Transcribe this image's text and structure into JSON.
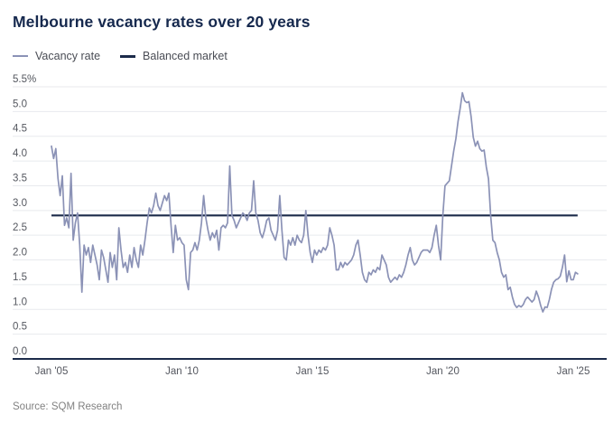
{
  "header": {
    "title": "Melbourne vacancy rates over 20 years"
  },
  "legend": [
    {
      "label": "Vacancy rate",
      "color": "#8b92b6"
    },
    {
      "label": "Balanced market",
      "color": "#1c2b4a"
    }
  ],
  "source": "Source: SQM Research",
  "colors": {
    "title": "#16294e",
    "vacancy_line": "#8b92b6",
    "balanced_line": "#1c2b4a",
    "gridline": "#e8eaee",
    "baseline": "#1c2b4a",
    "tick_text": "#54575f",
    "source_text": "#828282",
    "background": "#ffffff"
  },
  "chart_data": {
    "type": "line",
    "title": "Melbourne vacancy rates over 20 years",
    "unit": "%",
    "x_start": "Jan 2005",
    "x_end": "Mar 2025",
    "x_interval": "monthly",
    "ylim": [
      0,
      5.5
    ],
    "grid": "horizontal",
    "legend_position": "top-left",
    "y_ticks": [
      {
        "label": "5.5%",
        "value": 5.5
      },
      {
        "label": "5.0",
        "value": 5.0
      },
      {
        "label": "4.5",
        "value": 4.5
      },
      {
        "label": "4.0",
        "value": 4.0
      },
      {
        "label": "3.5",
        "value": 3.5
      },
      {
        "label": "3.0",
        "value": 3.0
      },
      {
        "label": "2.5",
        "value": 2.5
      },
      {
        "label": "2.0",
        "value": 2.0
      },
      {
        "label": "1.5",
        "value": 1.5
      },
      {
        "label": "1.0",
        "value": 1.0
      },
      {
        "label": "0.5",
        "value": 0.5
      },
      {
        "label": "0.0",
        "value": 0.0
      }
    ],
    "x_ticks": [
      {
        "label": "Jan '05",
        "month_index": 0
      },
      {
        "label": "Jan '10",
        "month_index": 60
      },
      {
        "label": "Jan '15",
        "month_index": 120
      },
      {
        "label": "Jan '20",
        "month_index": 180
      },
      {
        "label": "Jan '25",
        "month_index": 240
      }
    ],
    "series": [
      {
        "name": "Vacancy rate",
        "color": "#8b92b6",
        "values": [
          4.3,
          4.05,
          4.25,
          3.65,
          3.3,
          3.7,
          2.7,
          2.85,
          2.65,
          3.75,
          2.4,
          2.75,
          2.95,
          2.3,
          1.35,
          2.3,
          2.1,
          2.25,
          1.95,
          2.3,
          2.1,
          1.9,
          1.6,
          2.2,
          2.05,
          1.8,
          1.55,
          2.15,
          1.85,
          2.1,
          1.6,
          2.65,
          2.2,
          1.85,
          1.95,
          1.75,
          2.1,
          1.85,
          2.25,
          2.0,
          1.85,
          2.3,
          2.1,
          2.4,
          2.75,
          3.05,
          2.95,
          3.1,
          3.35,
          3.1,
          3.0,
          3.15,
          3.3,
          3.2,
          3.35,
          2.7,
          2.15,
          2.7,
          2.4,
          2.45,
          2.35,
          2.3,
          1.6,
          1.4,
          2.15,
          2.2,
          2.35,
          2.2,
          2.4,
          2.75,
          3.3,
          2.85,
          2.6,
          2.4,
          2.55,
          2.45,
          2.6,
          2.2,
          2.65,
          2.7,
          2.65,
          2.75,
          3.9,
          2.9,
          2.8,
          2.65,
          2.75,
          2.85,
          2.95,
          2.9,
          2.8,
          2.95,
          3.0,
          3.6,
          2.95,
          2.8,
          2.55,
          2.45,
          2.6,
          2.8,
          2.85,
          2.6,
          2.5,
          2.4,
          2.6,
          3.3,
          2.6,
          2.05,
          2.0,
          2.4,
          2.3,
          2.45,
          2.3,
          2.5,
          2.4,
          2.35,
          2.5,
          3.0,
          2.5,
          2.15,
          1.95,
          2.2,
          2.1,
          2.2,
          2.15,
          2.25,
          2.2,
          2.3,
          2.65,
          2.5,
          2.3,
          1.8,
          1.8,
          1.95,
          1.85,
          1.95,
          1.9,
          1.95,
          2.0,
          2.1,
          2.3,
          2.4,
          2.1,
          1.75,
          1.6,
          1.55,
          1.75,
          1.7,
          1.8,
          1.75,
          1.85,
          1.8,
          2.1,
          2.0,
          1.9,
          1.65,
          1.55,
          1.6,
          1.65,
          1.6,
          1.7,
          1.65,
          1.75,
          1.9,
          2.1,
          2.25,
          2.0,
          1.9,
          1.95,
          2.05,
          2.15,
          2.2,
          2.2,
          2.2,
          2.15,
          2.25,
          2.5,
          2.7,
          2.3,
          2.0,
          2.9,
          3.5,
          3.55,
          3.6,
          3.9,
          4.2,
          4.45,
          4.8,
          5.07,
          5.38,
          5.22,
          5.18,
          5.2,
          4.9,
          4.48,
          4.3,
          4.4,
          4.25,
          4.2,
          4.22,
          3.88,
          3.64,
          2.9,
          2.4,
          2.35,
          2.15,
          2.0,
          1.75,
          1.65,
          1.7,
          1.4,
          1.45,
          1.25,
          1.1,
          1.04,
          1.08,
          1.05,
          1.1,
          1.2,
          1.25,
          1.2,
          1.15,
          1.2,
          1.37,
          1.25,
          1.08,
          0.95,
          1.05,
          1.04,
          1.2,
          1.41,
          1.55,
          1.6,
          1.62,
          1.67,
          1.85,
          2.1,
          1.56,
          1.78,
          1.6,
          1.6,
          1.75,
          1.72
        ]
      },
      {
        "name": "Balanced market",
        "color": "#1c2b4a",
        "constant": 2.9
      }
    ]
  }
}
